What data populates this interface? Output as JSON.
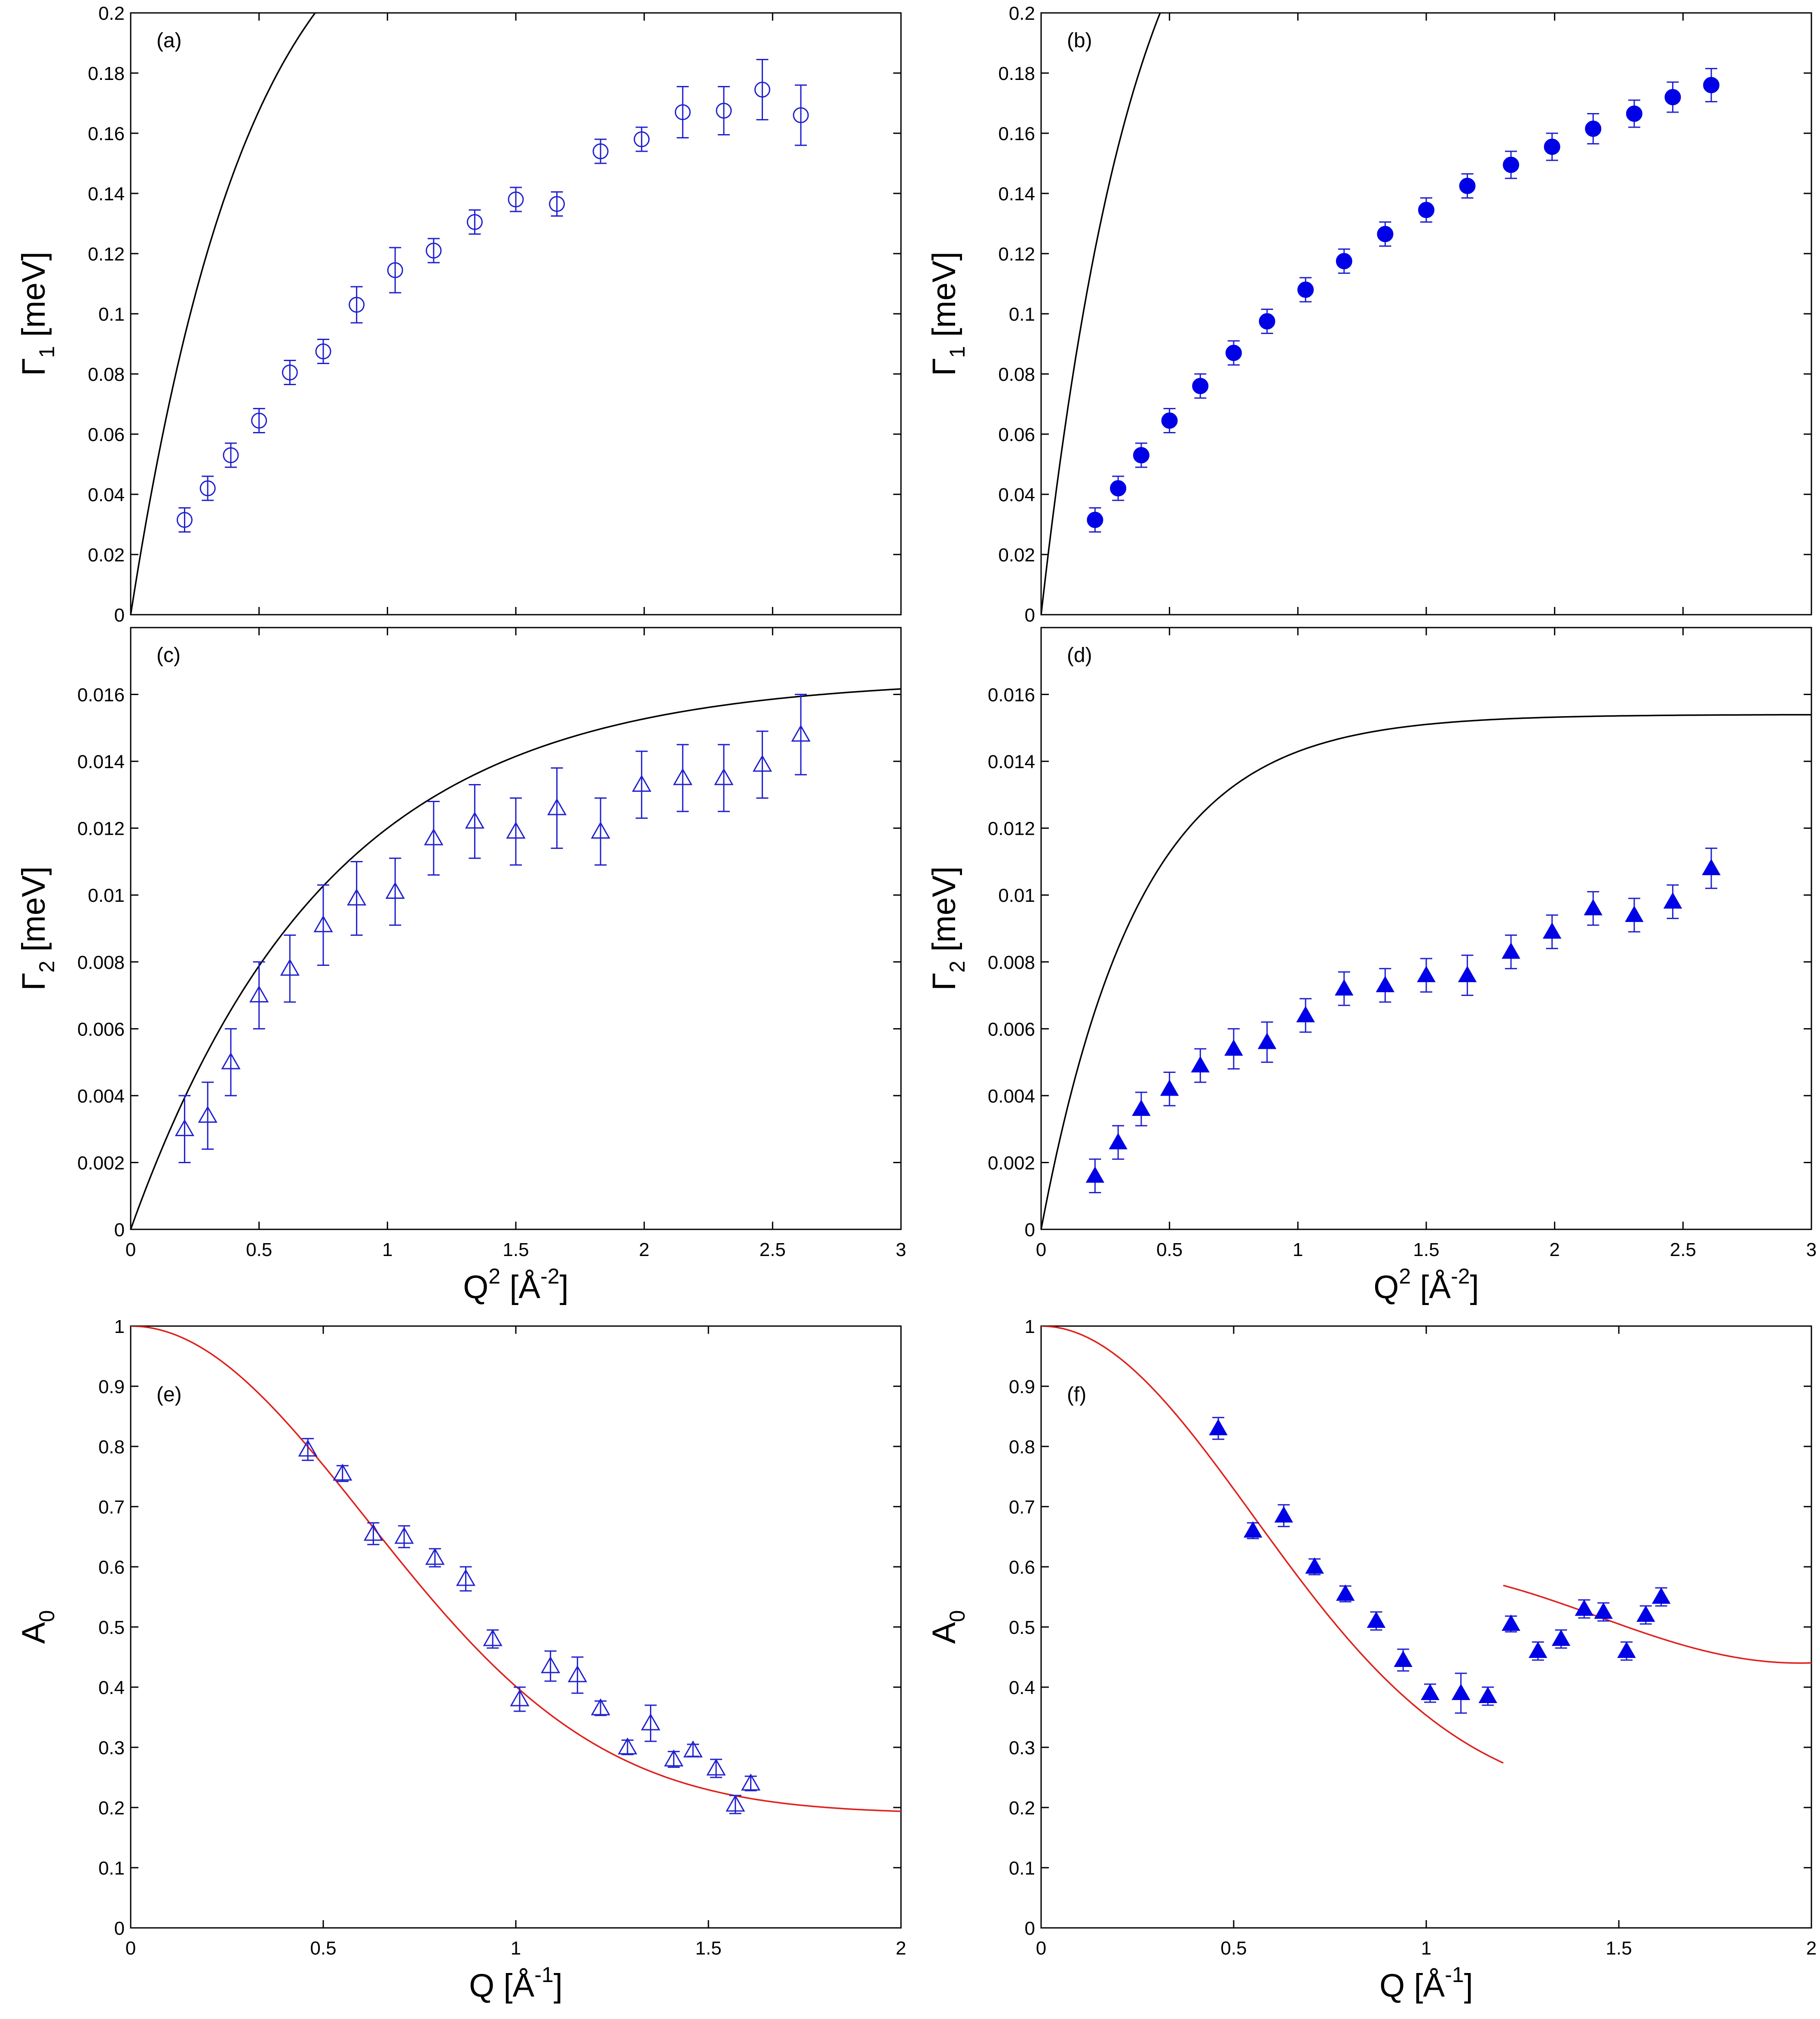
{
  "colors": {
    "marker": "#1f1fd0",
    "marker_fill": "#0000e6",
    "fit_black": "#000000",
    "fit_red": "#e0201c"
  },
  "xlabels": {
    "q2": {
      "main": "Q",
      "sup": "2",
      "unit": " [Å",
      "unitsup": "-2",
      "end": "]"
    },
    "q": {
      "main": "Q [Å",
      "sup": "-1",
      "end": "]"
    }
  },
  "ylabels": {
    "gamma1": {
      "main": "Γ",
      "sub": "1",
      "unit": " [meV]"
    },
    "gamma2": {
      "main": "Γ",
      "sub": "2",
      "unit": " [meV]"
    },
    "a0": {
      "main": "A",
      "sub": "0"
    }
  },
  "chart_data": [
    {
      "id": "a",
      "panel_label": "(a)",
      "type": "scatter",
      "marker": "circle-open",
      "xlim": [
        0,
        3
      ],
      "ylim": [
        0,
        0.2
      ],
      "xticks": [
        0,
        0.5,
        1,
        1.5,
        2,
        2.5,
        3
      ],
      "xtick_labels": [],
      "yticks": [
        0,
        0.02,
        0.04,
        0.06,
        0.08,
        0.1,
        0.12,
        0.14,
        0.16,
        0.18,
        0.2
      ],
      "ytick_labels": [
        "0",
        "0.02",
        "0.04",
        "0.06",
        "0.08",
        "0.1",
        "0.12",
        "0.14",
        "0.16",
        "0.18",
        "0.2"
      ],
      "ylabel": "gamma1",
      "xlabel": "",
      "x": [
        0.21,
        0.3,
        0.39,
        0.5,
        0.62,
        0.75,
        0.88,
        1.03,
        1.18,
        1.34,
        1.5,
        1.66,
        1.83,
        1.99,
        2.15,
        2.31,
        2.46,
        2.61
      ],
      "y": [
        0.0315,
        0.042,
        0.053,
        0.0645,
        0.0805,
        0.0875,
        0.103,
        0.1145,
        0.121,
        0.1305,
        0.138,
        0.1365,
        0.154,
        0.158,
        0.167,
        0.1675,
        0.1745,
        0.166
      ],
      "err": [
        0.004,
        0.004,
        0.004,
        0.004,
        0.004,
        0.004,
        0.006,
        0.0075,
        0.004,
        0.004,
        0.004,
        0.004,
        0.004,
        0.004,
        0.0085,
        0.008,
        0.01,
        0.01
      ],
      "fit": {
        "model": "exp",
        "A": 0.254,
        "B": 0.464,
        "xmax": 3
      }
    },
    {
      "id": "b",
      "panel_label": "(b)",
      "type": "scatter",
      "marker": "circle-filled",
      "xlim": [
        0,
        3
      ],
      "ylim": [
        0,
        0.2
      ],
      "xticks": [
        0,
        0.5,
        1,
        1.5,
        2,
        2.5,
        3
      ],
      "xtick_labels": [],
      "yticks": [
        0,
        0.02,
        0.04,
        0.06,
        0.08,
        0.1,
        0.12,
        0.14,
        0.16,
        0.18,
        0.2
      ],
      "ytick_labels": [
        "0",
        "0.02",
        "0.04",
        "0.06",
        "0.08",
        "0.1",
        "0.12",
        "0.14",
        "0.16",
        "0.18",
        "0.2"
      ],
      "ylabel": "gamma1",
      "xlabel": "",
      "x": [
        0.21,
        0.3,
        0.39,
        0.5,
        0.62,
        0.75,
        0.88,
        1.03,
        1.18,
        1.34,
        1.5,
        1.66,
        1.83,
        1.99,
        2.15,
        2.31,
        2.46,
        2.61
      ],
      "y": [
        0.0315,
        0.042,
        0.053,
        0.0645,
        0.076,
        0.087,
        0.0975,
        0.108,
        0.1175,
        0.1265,
        0.1345,
        0.1425,
        0.1495,
        0.1555,
        0.1615,
        0.1665,
        0.172,
        0.176
      ],
      "err": [
        0.004,
        0.004,
        0.004,
        0.004,
        0.004,
        0.004,
        0.004,
        0.004,
        0.004,
        0.004,
        0.004,
        0.004,
        0.0045,
        0.0045,
        0.005,
        0.0045,
        0.005,
        0.0055
      ],
      "fit": {
        "model": "exp",
        "A": 0.28,
        "B": 0.37,
        "xmax": 3
      }
    },
    {
      "id": "c",
      "panel_label": "(c)",
      "type": "scatter",
      "marker": "triangle-open",
      "xlim": [
        0,
        3
      ],
      "ylim": [
        0,
        0.018
      ],
      "xticks": [
        0,
        0.5,
        1,
        1.5,
        2,
        2.5,
        3
      ],
      "xtick_labels": [
        "0",
        "0.5",
        "1",
        "1.5",
        "2",
        "2.5",
        "3"
      ],
      "yticks": [
        0,
        0.002,
        0.004,
        0.006,
        0.008,
        0.01,
        0.012,
        0.014,
        0.016
      ],
      "ytick_labels": [
        "0",
        "0.002",
        "0.004",
        "0.006",
        "0.008",
        "0.01",
        "0.012",
        "0.014",
        "0.016"
      ],
      "ylabel": "gamma2",
      "xlabel": "q2",
      "x": [
        0.21,
        0.3,
        0.39,
        0.5,
        0.62,
        0.75,
        0.88,
        1.03,
        1.18,
        1.34,
        1.5,
        1.66,
        1.83,
        1.99,
        2.15,
        2.31,
        2.46,
        2.61
      ],
      "y": [
        0.003,
        0.0034,
        0.005,
        0.007,
        0.0078,
        0.0091,
        0.0099,
        0.0101,
        0.0117,
        0.0122,
        0.0119,
        0.0126,
        0.0119,
        0.0133,
        0.0135,
        0.0135,
        0.0139,
        0.0148
      ],
      "err": [
        0.001,
        0.001,
        0.001,
        0.001,
        0.001,
        0.0012,
        0.0011,
        0.001,
        0.0011,
        0.0011,
        0.001,
        0.0012,
        0.001,
        0.001,
        0.001,
        0.001,
        0.001,
        0.0012
      ],
      "fit": {
        "model": "exp",
        "A": 0.0165,
        "B": 0.77,
        "xmax": 3
      }
    },
    {
      "id": "d",
      "panel_label": "(d)",
      "type": "scatter",
      "marker": "triangle-filled",
      "xlim": [
        0,
        3
      ],
      "ylim": [
        0,
        0.018
      ],
      "xticks": [
        0,
        0.5,
        1,
        1.5,
        2,
        2.5,
        3
      ],
      "xtick_labels": [
        "0",
        "0.5",
        "1",
        "1.5",
        "2",
        "2.5",
        "3"
      ],
      "yticks": [
        0,
        0.002,
        0.004,
        0.006,
        0.008,
        0.01,
        0.012,
        0.014,
        0.016
      ],
      "ytick_labels": [
        "0",
        "0.002",
        "0.004",
        "0.006",
        "0.008",
        "0.01",
        "0.012",
        "0.014",
        "0.016"
      ],
      "ylabel": "gamma2",
      "xlabel": "q2",
      "x": [
        0.21,
        0.3,
        0.39,
        0.5,
        0.62,
        0.75,
        0.88,
        1.03,
        1.18,
        1.34,
        1.5,
        1.66,
        1.83,
        1.99,
        2.15,
        2.31,
        2.46,
        2.61
      ],
      "y": [
        0.0016,
        0.0026,
        0.0036,
        0.0042,
        0.0049,
        0.0054,
        0.0056,
        0.0064,
        0.0072,
        0.0073,
        0.0076,
        0.0076,
        0.0083,
        0.0089,
        0.0096,
        0.0094,
        0.0098,
        0.0108
      ],
      "err": [
        0.0005,
        0.0005,
        0.0005,
        0.0005,
        0.0005,
        0.0006,
        0.0006,
        0.0005,
        0.0005,
        0.0005,
        0.0005,
        0.0006,
        0.0005,
        0.0005,
        0.0005,
        0.0005,
        0.0005,
        0.0006
      ],
      "fit": {
        "model": "exp",
        "A": 0.0154,
        "B": 0.38,
        "xmax": 3
      }
    },
    {
      "id": "e",
      "panel_label": "(e)",
      "type": "scatter",
      "marker": "triangle-open",
      "xlim": [
        0,
        2
      ],
      "ylim": [
        0,
        1
      ],
      "xticks": [
        0,
        0.5,
        1,
        1.5,
        2
      ],
      "xtick_labels": [
        "0",
        "0.5",
        "1",
        "1.5",
        "2"
      ],
      "yticks": [
        0,
        0.1,
        0.2,
        0.3,
        0.4,
        0.5,
        0.6,
        0.7,
        0.8,
        0.9,
        1
      ],
      "ytick_labels": [
        "0",
        "0.1",
        "0.2",
        "0.3",
        "0.4",
        "0.5",
        "0.6",
        "0.7",
        "0.8",
        "0.9",
        "1"
      ],
      "ylabel": "a0",
      "xlabel": "q",
      "x": [
        0.46,
        0.55,
        0.63,
        0.71,
        0.79,
        0.87,
        0.94,
        1.01,
        1.09,
        1.16,
        1.22,
        1.29,
        1.35,
        1.41,
        1.46,
        1.52,
        1.57,
        1.61
      ],
      "y": [
        0.795,
        0.755,
        0.655,
        0.65,
        0.615,
        0.58,
        0.48,
        0.38,
        0.435,
        0.42,
        0.365,
        0.3,
        0.34,
        0.28,
        0.295,
        0.265,
        0.205,
        0.24
      ],
      "err": [
        0.018,
        0.013,
        0.018,
        0.018,
        0.015,
        0.02,
        0.015,
        0.02,
        0.025,
        0.03,
        0.012,
        0.012,
        0.03,
        0.013,
        0.01,
        0.015,
        0.015,
        0.012
      ],
      "fits": [
        {
          "model": "gauss",
          "A": 0.19,
          "s": 0.61,
          "xmin": 0,
          "xmax": 2
        }
      ]
    },
    {
      "id": "f",
      "panel_label": "(f)",
      "type": "scatter",
      "marker": "triangle-filled",
      "xlim": [
        0,
        2
      ],
      "ylim": [
        0,
        1
      ],
      "xticks": [
        0,
        0.5,
        1,
        1.5,
        2
      ],
      "xtick_labels": [
        "0",
        "0.5",
        "1",
        "1.5",
        "2"
      ],
      "yticks": [
        0,
        0.1,
        0.2,
        0.3,
        0.4,
        0.5,
        0.6,
        0.7,
        0.8,
        0.9,
        1
      ],
      "ytick_labels": [
        "0",
        "0.1",
        "0.2",
        "0.3",
        "0.4",
        "0.5",
        "0.6",
        "0.7",
        "0.8",
        "0.9",
        "1"
      ],
      "ylabel": "a0",
      "xlabel": "q",
      "x": [
        0.46,
        0.55,
        0.63,
        0.71,
        0.79,
        0.87,
        0.94,
        1.01,
        1.09,
        1.16,
        1.22,
        1.29,
        1.35,
        1.41,
        1.46,
        1.52,
        1.57,
        1.61
      ],
      "y": [
        0.83,
        0.66,
        0.685,
        0.6,
        0.555,
        0.51,
        0.445,
        0.39,
        0.39,
        0.385,
        0.505,
        0.46,
        0.48,
        0.53,
        0.525,
        0.46,
        0.52,
        0.55
      ],
      "err": [
        0.018,
        0.013,
        0.018,
        0.013,
        0.013,
        0.015,
        0.018,
        0.015,
        0.033,
        0.015,
        0.013,
        0.015,
        0.015,
        0.015,
        0.015,
        0.015,
        0.015,
        0.015
      ],
      "fits": [
        {
          "model": "gauss",
          "A": 0.2,
          "s": 0.55,
          "xmin": 0,
          "xmax": 1.2
        },
        {
          "model": "sin",
          "c": 0.517,
          "a": 0.077,
          "w": 3.0,
          "p": 1.2,
          "xmin": 1.2,
          "xmax": 2
        }
      ]
    }
  ]
}
